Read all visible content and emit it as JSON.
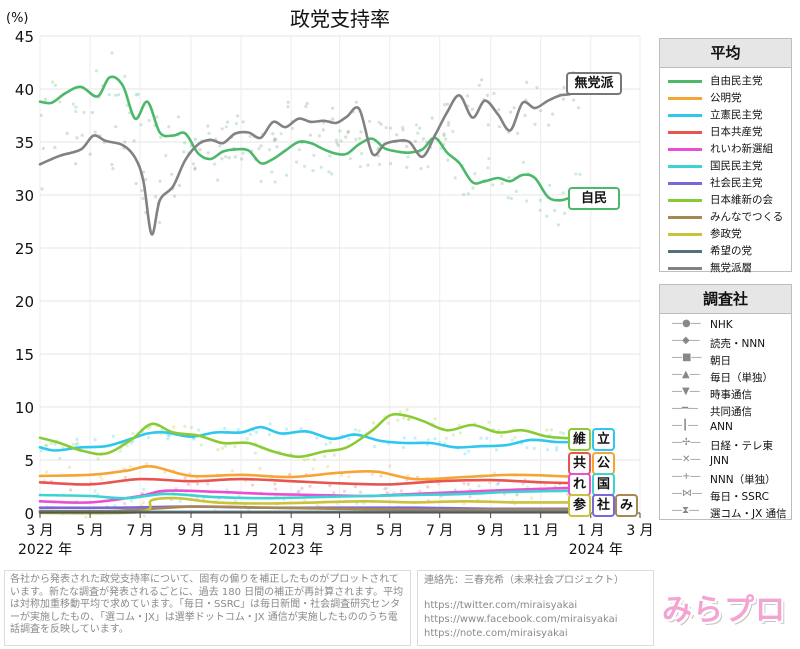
{
  "chart_data": {
    "type": "line",
    "title": "政党支持率",
    "ylabel": "(%)",
    "ylim": [
      0,
      45
    ],
    "yticks": [
      0,
      5,
      10,
      15,
      20,
      25,
      30,
      35,
      40,
      45
    ],
    "xlim": [
      "2022-03-01",
      "2024-03-01"
    ],
    "x_tick_labels": [
      {
        "date": "2022-03-01",
        "label": "3 月"
      },
      {
        "date": "2022-05-01",
        "label": "5 月"
      },
      {
        "date": "2022-07-01",
        "label": "7 月"
      },
      {
        "date": "2022-09-01",
        "label": "9 月"
      },
      {
        "date": "2022-11-01",
        "label": "11 月"
      },
      {
        "date": "2023-01-01",
        "label": "1 月"
      },
      {
        "date": "2023-03-01",
        "label": "3 月"
      },
      {
        "date": "2023-05-01",
        "label": "5 月"
      },
      {
        "date": "2023-07-01",
        "label": "7 月"
      },
      {
        "date": "2023-09-01",
        "label": "9 月"
      },
      {
        "date": "2023-11-01",
        "label": "11 月"
      },
      {
        "date": "2024-01-01",
        "label": "1 月"
      },
      {
        "date": "2024-03-01",
        "label": "3 月"
      }
    ],
    "year_labels": [
      {
        "date": "2022-03-01",
        "label": "2022 年"
      },
      {
        "date": "2023-01-01",
        "label": "2023 年"
      },
      {
        "date": "2024-01-01",
        "label": "2024 年"
      }
    ],
    "grid": true,
    "legend_position": "right",
    "series": [
      {
        "name": "自由民主党",
        "color": "#4cb86a",
        "x": [
          "2022-03-01",
          "2022-03-15",
          "2022-04-01",
          "2022-04-20",
          "2022-05-10",
          "2022-05-25",
          "2022-06-10",
          "2022-06-25",
          "2022-07-10",
          "2022-07-25",
          "2022-08-10",
          "2022-08-25",
          "2022-09-10",
          "2022-09-25",
          "2022-10-10",
          "2022-10-25",
          "2022-11-10",
          "2022-11-25",
          "2022-12-10",
          "2022-12-25",
          "2023-01-10",
          "2023-01-25",
          "2023-02-10",
          "2023-02-25",
          "2023-03-10",
          "2023-03-25",
          "2023-04-10",
          "2023-04-25",
          "2023-05-10",
          "2023-05-25",
          "2023-06-10",
          "2023-06-25",
          "2023-07-10",
          "2023-07-25",
          "2023-08-10",
          "2023-08-25",
          "2023-09-10",
          "2023-09-25",
          "2023-10-10",
          "2023-10-25",
          "2023-11-10",
          "2023-11-25",
          "2023-12-10",
          "2023-12-20"
        ],
        "y": [
          38.8,
          38.7,
          39.6,
          40.2,
          39.3,
          41.1,
          40.3,
          37.2,
          38.8,
          35.9,
          35.6,
          35.8,
          33.9,
          33.4,
          34.1,
          34.3,
          34.2,
          33.0,
          33.4,
          34.2,
          35.0,
          34.9,
          34.3,
          33.9,
          33.9,
          34.8,
          35.3,
          34.4,
          34.1,
          34.0,
          34.3,
          35.4,
          34.0,
          33.0,
          31.2,
          31.3,
          31.6,
          31.3,
          31.9,
          31.6,
          29.8,
          29.5,
          29.8,
          29.7
        ]
      },
      {
        "name": "公明党",
        "color": "#f5a534",
        "x": [
          "2022-03-01",
          "2022-05-01",
          "2022-06-15",
          "2022-07-15",
          "2022-09-01",
          "2022-11-01",
          "2023-01-01",
          "2023-03-01",
          "2023-04-15",
          "2023-06-01",
          "2023-08-01",
          "2023-10-01",
          "2023-12-20"
        ],
        "y": [
          3.5,
          3.6,
          4.0,
          4.4,
          3.5,
          3.6,
          3.4,
          3.8,
          3.9,
          3.2,
          3.4,
          3.6,
          3.4
        ]
      },
      {
        "name": "立憲民主党",
        "color": "#2fc7ee",
        "x": [
          "2022-03-01",
          "2022-03-20",
          "2022-04-20",
          "2022-05-20",
          "2022-06-20",
          "2022-07-10",
          "2022-08-01",
          "2022-09-01",
          "2022-10-01",
          "2022-11-01",
          "2022-11-25",
          "2022-12-20",
          "2023-01-20",
          "2023-02-20",
          "2023-03-20",
          "2023-04-20",
          "2023-05-20",
          "2023-06-20",
          "2023-07-20",
          "2023-08-20",
          "2023-09-20",
          "2023-10-20",
          "2023-11-20",
          "2023-12-20"
        ],
        "y": [
          6.2,
          5.9,
          6.2,
          6.3,
          7.0,
          7.5,
          7.6,
          7.2,
          7.6,
          7.6,
          8.1,
          7.5,
          7.7,
          7.0,
          7.4,
          6.8,
          6.6,
          6.6,
          6.2,
          6.3,
          6.4,
          6.9,
          6.7,
          6.7
        ]
      },
      {
        "name": "日本共産党",
        "color": "#e8544f",
        "x": [
          "2022-03-01",
          "2022-05-01",
          "2022-07-01",
          "2022-09-01",
          "2022-11-01",
          "2023-01-01",
          "2023-03-01",
          "2023-05-01",
          "2023-07-01",
          "2023-09-01",
          "2023-11-01",
          "2023-12-20"
        ],
        "y": [
          2.9,
          2.7,
          3.2,
          3.0,
          3.2,
          3.0,
          2.8,
          2.7,
          3.0,
          3.1,
          2.9,
          2.8
        ]
      },
      {
        "name": "れいわ新選組",
        "color": "#e94fd0",
        "x": [
          "2022-03-01",
          "2022-05-01",
          "2022-07-01",
          "2022-08-01",
          "2022-10-01",
          "2022-12-01",
          "2023-02-01",
          "2023-04-01",
          "2023-06-01",
          "2023-08-01",
          "2023-10-01",
          "2023-12-20"
        ],
        "y": [
          1.1,
          1.0,
          1.6,
          2.1,
          2.0,
          1.8,
          1.7,
          1.6,
          1.8,
          2.0,
          2.2,
          2.4
        ]
      },
      {
        "name": "国民民主党",
        "color": "#3cd3d3",
        "x": [
          "2022-03-01",
          "2022-05-01",
          "2022-06-15",
          "2022-08-01",
          "2022-10-01",
          "2022-12-01",
          "2023-02-01",
          "2023-04-01",
          "2023-06-01",
          "2023-08-01",
          "2023-10-01",
          "2023-12-20"
        ],
        "y": [
          1.7,
          1.6,
          1.4,
          1.8,
          1.5,
          1.4,
          1.5,
          1.6,
          1.7,
          1.8,
          2.0,
          2.1
        ]
      },
      {
        "name": "社会民主党",
        "color": "#7b68d8",
        "x": [
          "2022-03-01",
          "2022-06-01",
          "2022-09-01",
          "2022-12-01",
          "2023-03-01",
          "2023-06-01",
          "2023-09-01",
          "2023-12-20"
        ],
        "y": [
          0.5,
          0.5,
          0.6,
          0.5,
          0.5,
          0.5,
          0.4,
          0.4
        ]
      },
      {
        "name": "日本維新の会",
        "color": "#8acb35",
        "x": [
          "2022-03-01",
          "2022-03-25",
          "2022-04-20",
          "2022-05-20",
          "2022-06-20",
          "2022-07-15",
          "2022-08-10",
          "2022-09-10",
          "2022-10-10",
          "2022-11-10",
          "2022-12-10",
          "2023-01-10",
          "2023-02-10",
          "2023-03-10",
          "2023-04-10",
          "2023-05-01",
          "2023-05-20",
          "2023-06-10",
          "2023-07-10",
          "2023-08-10",
          "2023-09-10",
          "2023-10-10",
          "2023-11-10",
          "2023-12-20"
        ],
        "y": [
          7.1,
          6.6,
          5.9,
          5.6,
          6.9,
          8.4,
          7.6,
          7.3,
          6.6,
          6.6,
          5.8,
          5.3,
          5.8,
          6.2,
          7.8,
          9.2,
          9.2,
          8.7,
          7.8,
          8.3,
          7.6,
          7.8,
          7.2,
          7.0
        ]
      },
      {
        "name": "みんなでつくる",
        "color": "#a88852",
        "x": [
          "2022-03-01",
          "2022-06-01",
          "2022-09-01",
          "2022-12-01",
          "2023-03-01",
          "2023-06-01",
          "2023-09-01",
          "2023-12-20"
        ],
        "y": [
          0.2,
          0.2,
          0.6,
          0.5,
          0.4,
          0.3,
          0.3,
          0.3
        ]
      },
      {
        "name": "参政党",
        "color": "#c9c23a",
        "x": [
          "2022-03-01",
          "2022-07-01",
          "2022-07-15",
          "2022-08-15",
          "2022-10-01",
          "2022-12-01",
          "2023-02-01",
          "2023-04-01",
          "2023-06-01",
          "2023-08-01",
          "2023-10-01",
          "2023-12-20"
        ],
        "y": [
          0.0,
          0.1,
          1.2,
          1.4,
          1.0,
          0.9,
          1.0,
          1.1,
          1.0,
          1.1,
          1.0,
          1.0
        ]
      },
      {
        "name": "希望の党",
        "color": "#55707a",
        "x": [
          "2022-03-01",
          "2022-09-01",
          "2023-03-01",
          "2023-12-20"
        ],
        "y": [
          0.1,
          0.1,
          0.1,
          0.1
        ]
      },
      {
        "name": "無党派層",
        "color": "#828282",
        "x": [
          "2022-03-01",
          "2022-03-25",
          "2022-04-20",
          "2022-05-05",
          "2022-05-20",
          "2022-06-10",
          "2022-06-25",
          "2022-07-05",
          "2022-07-15",
          "2022-07-25",
          "2022-08-10",
          "2022-08-25",
          "2022-09-10",
          "2022-09-25",
          "2022-10-10",
          "2022-10-25",
          "2022-11-10",
          "2022-11-25",
          "2022-12-10",
          "2022-12-25",
          "2023-01-10",
          "2023-01-25",
          "2023-02-10",
          "2023-02-25",
          "2023-03-10",
          "2023-03-25",
          "2023-04-10",
          "2023-04-25",
          "2023-05-10",
          "2023-05-25",
          "2023-06-10",
          "2023-06-25",
          "2023-07-10",
          "2023-07-25",
          "2023-08-10",
          "2023-08-25",
          "2023-09-10",
          "2023-09-25",
          "2023-10-10",
          "2023-10-25",
          "2023-11-10",
          "2023-11-25",
          "2023-12-10",
          "2023-12-20"
        ],
        "y": [
          32.9,
          33.7,
          34.3,
          35.6,
          35.1,
          34.7,
          33.5,
          31.3,
          26.3,
          29.5,
          30.8,
          33.3,
          34.8,
          35.2,
          34.9,
          35.8,
          35.9,
          35.4,
          36.9,
          36.4,
          37.2,
          36.9,
          37.0,
          36.8,
          37.4,
          38.1,
          33.9,
          34.8,
          35.1,
          35.0,
          33.6,
          35.6,
          37.8,
          39.4,
          37.3,
          38.9,
          37.6,
          36.1,
          38.7,
          38.2,
          38.9,
          39.4,
          39.6,
          40.6
        ]
      }
    ],
    "end_labels": [
      {
        "text": "無党派",
        "series": "無党派層"
      },
      {
        "text": "自民",
        "series": "自由民主党"
      }
    ],
    "party_tags": [
      {
        "text": "維",
        "color": "#8acb35"
      },
      {
        "text": "立",
        "color": "#2fc7ee"
      },
      {
        "text": "共",
        "color": "#e8544f"
      },
      {
        "text": "公",
        "color": "#f5a534"
      },
      {
        "text": "れ",
        "color": "#e94fd0"
      },
      {
        "text": "国",
        "color": "#3cd3d3"
      },
      {
        "text": "参",
        "color": "#c9c23a"
      },
      {
        "text": "社",
        "color": "#7b68d8"
      },
      {
        "text": "み",
        "color": "#a88852"
      }
    ]
  },
  "legend": {
    "title": "平均",
    "items": [
      "自由民主党",
      "公明党",
      "立憲民主党",
      "日本共産党",
      "れいわ新選組",
      "国民民主党",
      "社会民主党",
      "日本維新の会",
      "みんなでつくる",
      "参政党",
      "希望の党",
      "無党派層"
    ]
  },
  "pollster_legend": {
    "title": "調査社",
    "items": [
      {
        "label": "NHK",
        "icon": "circle-marker-icon",
        "glyph": "●"
      },
      {
        "label": "読売・NNN",
        "icon": "diamond-marker-icon",
        "glyph": "◆"
      },
      {
        "label": "朝日",
        "icon": "square-marker-icon",
        "glyph": "■"
      },
      {
        "label": "毎日（単独）",
        "icon": "triangle-up-marker-icon",
        "glyph": "▲"
      },
      {
        "label": "時事通信",
        "icon": "triangle-down-marker-icon",
        "glyph": "▼"
      },
      {
        "label": "共同通信",
        "icon": "dash-marker-icon",
        "glyph": "━"
      },
      {
        "label": "ANN",
        "icon": "bar-marker-icon",
        "glyph": "┃"
      },
      {
        "label": "日経・テレ東",
        "icon": "star-plus-marker-icon",
        "glyph": "✢"
      },
      {
        "label": "JNN",
        "icon": "cross-marker-icon",
        "glyph": "✕"
      },
      {
        "label": "NNN（単独）",
        "icon": "plus-marker-icon",
        "glyph": "+"
      },
      {
        "label": "毎日・SSRC",
        "icon": "bowtie-marker-icon",
        "glyph": "⋈"
      },
      {
        "label": "選コム・JX 通信",
        "icon": "hourglass-marker-icon",
        "glyph": "⧗"
      }
    ]
  },
  "footer": {
    "note": "各社から発表された政党支持率について、固有の偏りを補正したものがプロットされています。新たな調査が発表されるごとに、過去 180 日間の補正が再計算されます。平均は対称加重移動平均で求めています。「毎日・SSRC」は毎日新聞・社会調査研究センターが実施したもの、「選コム・JX」は選挙ドットコム・JX 通信が実施したもののうち電話調査を反映しています。",
    "contact": "連絡先：三春充希（未来社会プロジェクト）",
    "links": [
      "https://twitter.com/miraisyakai",
      "https://www.facebook.com/miraisyakai",
      "https://note.com/miraisyakai"
    ],
    "logo": "みらプロ"
  }
}
